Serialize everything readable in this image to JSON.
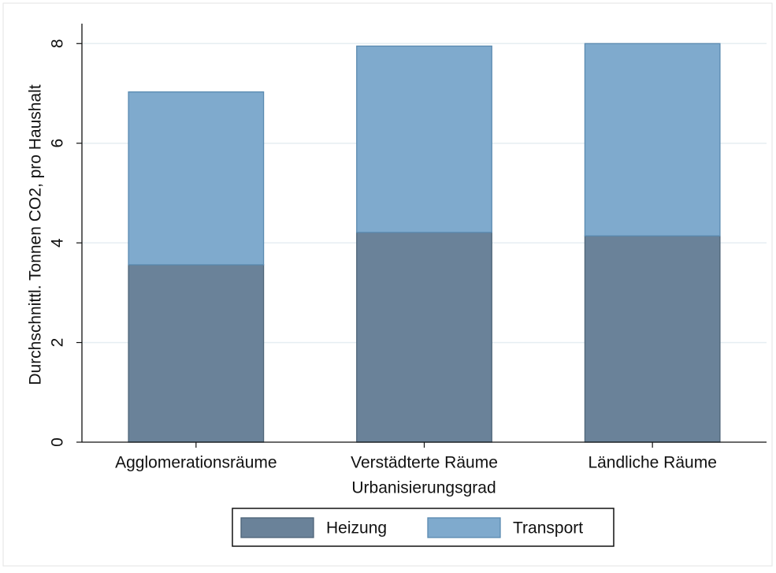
{
  "chart_data": {
    "type": "stacked_bar",
    "y_label": "Durchschnittl. Tonnen CO2, pro Haushalt",
    "x_label": "Urbanisierungsgrad",
    "categories": [
      "Agglomerationsräume",
      "Verstädterte Räume",
      "Ländliche Räume"
    ],
    "series": [
      {
        "name": "Heizung",
        "color": "#6a8299",
        "values": [
          3.56,
          4.21,
          4.14
        ]
      },
      {
        "name": "Transport",
        "color": "#7faacd",
        "values": [
          3.47,
          3.74,
          3.86
        ]
      }
    ],
    "ylim": [
      0,
      8.4
    ],
    "yticks": [
      0,
      2,
      4,
      6,
      8
    ],
    "grid": true
  }
}
